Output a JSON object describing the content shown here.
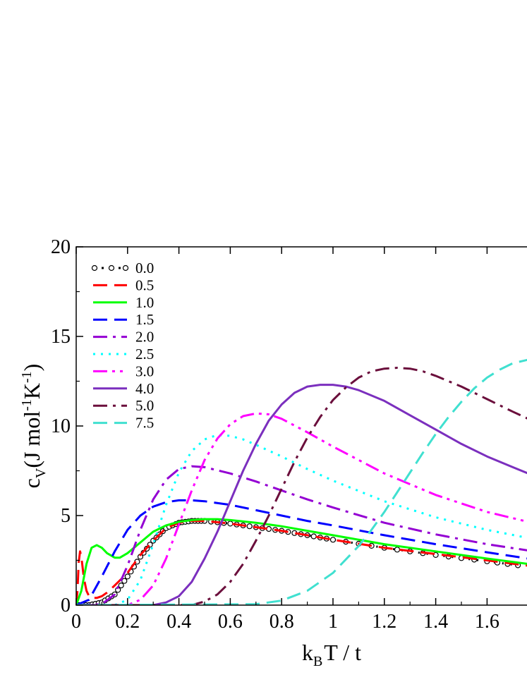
{
  "chart_data": {
    "type": "line",
    "xlabel": {
      "base": "k",
      "sub": "B",
      "rest": "T / t"
    },
    "ylabel": {
      "base": "c",
      "sub": "V",
      "unit_open": "(J mol",
      "sup1": "-1",
      "unit_mid": "K",
      "sup2": "-1",
      "unit_close": ")"
    },
    "xlim": [
      0,
      1.76
    ],
    "ylim": [
      0,
      20
    ],
    "xticks": [
      0,
      0.2,
      0.4,
      0.6,
      0.8,
      1,
      1.2,
      1.4,
      1.6
    ],
    "xtick_labels": [
      "0",
      "0.2",
      "0.4",
      "0.6",
      "0.8",
      "1",
      "1.2",
      "1.4",
      "1.6"
    ],
    "yticks": [
      0,
      5,
      10,
      15,
      20
    ],
    "ytick_labels": [
      "0",
      "5",
      "10",
      "15",
      "20"
    ],
    "grid": false,
    "legend_position": "top-left",
    "series": [
      {
        "name": "0.0",
        "color": "#000000",
        "style": "dotted-circles",
        "x": [
          0,
          0.05,
          0.1,
          0.15,
          0.2,
          0.25,
          0.3,
          0.35,
          0.4,
          0.45,
          0.5,
          0.6,
          0.7,
          0.8,
          0.9,
          1.0,
          1.2,
          1.4,
          1.6,
          1.76
        ],
        "y": [
          0,
          0,
          0.15,
          0.6,
          1.6,
          2.7,
          3.6,
          4.3,
          4.6,
          4.7,
          4.7,
          4.55,
          4.35,
          4.15,
          3.9,
          3.65,
          3.2,
          2.8,
          2.45,
          2.15
        ]
      },
      {
        "name": "0.5",
        "color": "#ff0000",
        "style": "dashed",
        "x": [
          0,
          0.005,
          0.01,
          0.015,
          0.02,
          0.03,
          0.04,
          0.05,
          0.06,
          0.08,
          0.1,
          0.12,
          0.15,
          0.2,
          0.25,
          0.3,
          0.35,
          0.4,
          0.45,
          0.5,
          0.6,
          0.7,
          0.8,
          0.9,
          1.0,
          1.2,
          1.4,
          1.6,
          1.76
        ],
        "y": [
          0,
          0.8,
          2.4,
          3.0,
          2.7,
          1.5,
          0.8,
          0.5,
          0.4,
          0.4,
          0.5,
          0.7,
          1.1,
          1.8,
          2.8,
          3.6,
          4.3,
          4.6,
          4.7,
          4.7,
          4.55,
          4.35,
          4.15,
          3.9,
          3.65,
          3.2,
          2.85,
          2.5,
          2.2
        ]
      },
      {
        "name": "1.0",
        "color": "#00ff00",
        "style": "solid",
        "x": [
          0,
          0.02,
          0.04,
          0.06,
          0.08,
          0.1,
          0.12,
          0.15,
          0.17,
          0.2,
          0.25,
          0.3,
          0.35,
          0.4,
          0.45,
          0.5,
          0.55,
          0.6,
          0.7,
          0.8,
          0.9,
          1.0,
          1.2,
          1.4,
          1.6,
          1.76
        ],
        "y": [
          0,
          0.8,
          2.3,
          3.2,
          3.35,
          3.2,
          2.9,
          2.65,
          2.65,
          2.9,
          3.5,
          4.1,
          4.45,
          4.65,
          4.75,
          4.8,
          4.8,
          4.75,
          4.6,
          4.4,
          4.15,
          3.9,
          3.4,
          3.0,
          2.6,
          2.3
        ]
      },
      {
        "name": "1.5",
        "color": "#0000ff",
        "style": "dashed",
        "x": [
          0,
          0.05,
          0.1,
          0.15,
          0.2,
          0.25,
          0.3,
          0.35,
          0.4,
          0.45,
          0.5,
          0.6,
          0.7,
          0.8,
          0.9,
          1.0,
          1.2,
          1.4,
          1.6,
          1.76
        ],
        "y": [
          0,
          0.3,
          1.6,
          3.0,
          4.2,
          5.0,
          5.5,
          5.75,
          5.85,
          5.85,
          5.8,
          5.6,
          5.3,
          5.0,
          4.7,
          4.45,
          3.9,
          3.4,
          2.95,
          2.6
        ]
      },
      {
        "name": "2.0",
        "color": "#9400d3",
        "style": "dash-dot",
        "x": [
          0,
          0.1,
          0.15,
          0.2,
          0.25,
          0.3,
          0.35,
          0.4,
          0.45,
          0.5,
          0.6,
          0.7,
          0.8,
          0.9,
          1.0,
          1.2,
          1.4,
          1.6,
          1.76
        ],
        "y": [
          0,
          0.05,
          0.6,
          2.2,
          4.2,
          5.9,
          7.0,
          7.6,
          7.75,
          7.7,
          7.35,
          6.9,
          6.4,
          5.9,
          5.45,
          4.6,
          3.95,
          3.4,
          3.05
        ]
      },
      {
        "name": "2.5",
        "color": "#00ffff",
        "style": "dotted",
        "x": [
          0,
          0.15,
          0.2,
          0.25,
          0.3,
          0.35,
          0.4,
          0.45,
          0.5,
          0.55,
          0.6,
          0.65,
          0.7,
          0.8,
          0.9,
          1.0,
          1.2,
          1.4,
          1.6,
          1.76
        ],
        "y": [
          0,
          0,
          0.3,
          1.4,
          3.4,
          5.6,
          7.4,
          8.6,
          9.25,
          9.5,
          9.45,
          9.25,
          8.95,
          8.3,
          7.6,
          6.95,
          5.8,
          4.9,
          4.2,
          3.75
        ]
      },
      {
        "name": "3.0",
        "color": "#ff00ff",
        "style": "dash-dot-dot",
        "x": [
          0,
          0.2,
          0.25,
          0.3,
          0.35,
          0.4,
          0.45,
          0.5,
          0.55,
          0.6,
          0.65,
          0.7,
          0.75,
          0.8,
          0.9,
          1.0,
          1.2,
          1.4,
          1.6,
          1.76
        ],
        "y": [
          0,
          0,
          0.3,
          1.1,
          2.6,
          4.5,
          6.4,
          8.1,
          9.3,
          10.1,
          10.55,
          10.7,
          10.65,
          10.4,
          9.65,
          8.85,
          7.35,
          6.15,
          5.2,
          4.65
        ]
      },
      {
        "name": "4.0",
        "color": "#7b2fbe",
        "style": "solid",
        "x": [
          0,
          0.3,
          0.35,
          0.4,
          0.45,
          0.5,
          0.55,
          0.6,
          0.65,
          0.7,
          0.75,
          0.8,
          0.85,
          0.9,
          0.95,
          1.0,
          1.05,
          1.1,
          1.2,
          1.3,
          1.4,
          1.5,
          1.6,
          1.7,
          1.76
        ],
        "y": [
          0,
          0,
          0.15,
          0.5,
          1.3,
          2.6,
          4.1,
          5.8,
          7.5,
          9.0,
          10.3,
          11.2,
          11.85,
          12.2,
          12.3,
          12.3,
          12.2,
          12.0,
          11.4,
          10.6,
          9.8,
          9.0,
          8.3,
          7.7,
          7.35
        ]
      },
      {
        "name": "5.0",
        "color": "#6b0f3c",
        "style": "dash-dot",
        "x": [
          0,
          0.45,
          0.5,
          0.55,
          0.6,
          0.65,
          0.7,
          0.75,
          0.8,
          0.85,
          0.9,
          0.95,
          1.0,
          1.05,
          1.1,
          1.15,
          1.2,
          1.25,
          1.3,
          1.35,
          1.4,
          1.5,
          1.6,
          1.7,
          1.76
        ],
        "y": [
          0,
          0,
          0.2,
          0.6,
          1.3,
          2.3,
          3.6,
          5.0,
          6.5,
          8.0,
          9.35,
          10.5,
          11.45,
          12.15,
          12.7,
          13.05,
          13.2,
          13.25,
          13.2,
          13.05,
          12.8,
          12.2,
          11.5,
          10.8,
          10.4
        ]
      },
      {
        "name": "7.5",
        "color": "#40e0d0",
        "style": "dashed",
        "x": [
          0,
          0.7,
          0.8,
          0.9,
          1.0,
          1.1,
          1.15,
          1.2,
          1.25,
          1.3,
          1.35,
          1.4,
          1.45,
          1.5,
          1.55,
          1.6,
          1.65,
          1.7,
          1.76
        ],
        "y": [
          0,
          0.05,
          0.25,
          0.8,
          1.8,
          3.3,
          4.2,
          5.2,
          6.3,
          7.4,
          8.5,
          9.55,
          10.5,
          11.35,
          12.1,
          12.7,
          13.15,
          13.5,
          13.7
        ]
      }
    ]
  }
}
